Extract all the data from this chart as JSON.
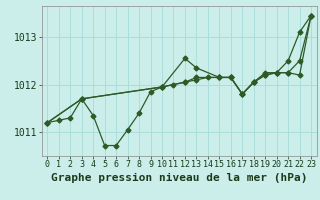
{
  "background_color": "#cceeea",
  "grid_color": "#aaddda",
  "line_color": "#2d5a27",
  "title": "Graphe pression niveau de la mer (hPa)",
  "xlim": [
    -0.5,
    23.5
  ],
  "ylim": [
    1010.5,
    1013.65
  ],
  "yticks": [
    1011,
    1012,
    1013
  ],
  "xticks": [
    0,
    1,
    2,
    3,
    4,
    5,
    6,
    7,
    8,
    9,
    10,
    11,
    12,
    13,
    14,
    15,
    16,
    17,
    18,
    19,
    20,
    21,
    22,
    23
  ],
  "line1_x": [
    0,
    1,
    2,
    3,
    4,
    5,
    6,
    7,
    8,
    9,
    10,
    11,
    12,
    13,
    14,
    15,
    16,
    17,
    18,
    19,
    20,
    21,
    22,
    23
  ],
  "line1_y": [
    1011.2,
    1011.25,
    1011.3,
    1011.7,
    1011.35,
    1010.72,
    1010.72,
    1011.05,
    1011.4,
    1011.85,
    1011.95,
    1012.0,
    1012.05,
    1012.1,
    1012.15,
    1012.15,
    1012.15,
    1011.8,
    1012.05,
    1012.2,
    1012.25,
    1012.25,
    1012.5,
    1013.45
  ],
  "line2_x": [
    0,
    3,
    10,
    12,
    13,
    15,
    16,
    17,
    18,
    19,
    20,
    21,
    22,
    23
  ],
  "line2_y": [
    1011.2,
    1011.7,
    1011.95,
    1012.55,
    1012.35,
    1012.15,
    1012.15,
    1011.8,
    1012.05,
    1012.25,
    1012.25,
    1012.5,
    1013.1,
    1013.45
  ],
  "line3_x": [
    0,
    3,
    10,
    12,
    13,
    15,
    16,
    17,
    18,
    19,
    20,
    21,
    22,
    23
  ],
  "line3_y": [
    1011.2,
    1011.7,
    1011.95,
    1012.05,
    1012.15,
    1012.15,
    1012.15,
    1011.8,
    1012.05,
    1012.2,
    1012.25,
    1012.25,
    1012.2,
    1013.45
  ],
  "tick_fontsize": 7,
  "title_fontsize": 8,
  "marker_size": 2.5,
  "line_width": 0.9
}
